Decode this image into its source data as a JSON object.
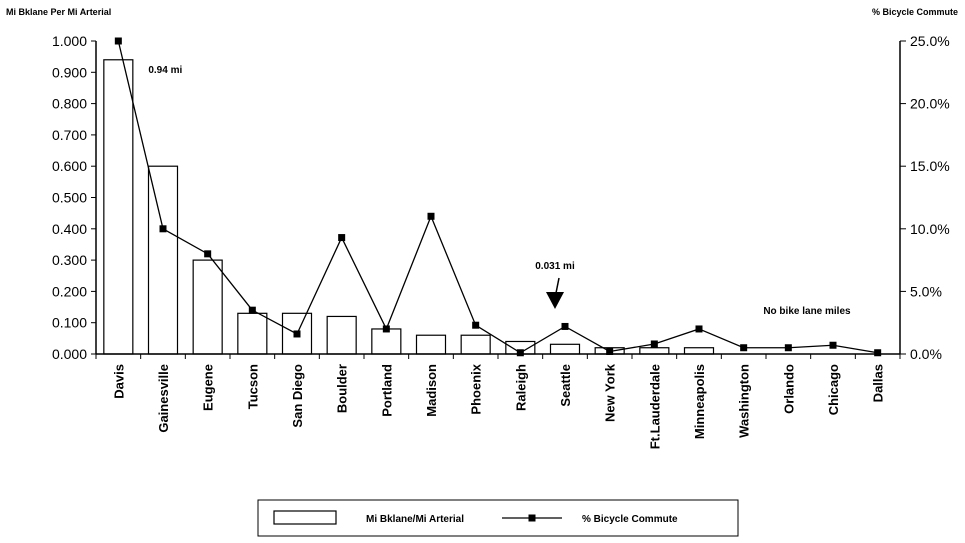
{
  "chart_data": {
    "type": "bar",
    "title": "",
    "left_axis_title": "Mi Bklane Per Mi Arterial",
    "right_axis_title": "% Bicycle Commute",
    "categories": [
      "Davis",
      "Gainesville",
      "Eugene",
      "Tucson",
      "San Diego",
      "Boulder",
      "Portland",
      "Madison",
      "Phoenix",
      "Raleigh",
      "Seattle",
      "New York",
      "Ft.Lauderdale",
      "Minneapolis",
      "Washington",
      "Orlando",
      "Chicago",
      "Dallas"
    ],
    "left_ylim": [
      0,
      1.0
    ],
    "left_ticks": [
      "0.000",
      "0.100",
      "0.200",
      "0.300",
      "0.400",
      "0.500",
      "0.600",
      "0.700",
      "0.800",
      "0.900",
      "1.000"
    ],
    "right_ylim": [
      0,
      25
    ],
    "right_ticks": [
      "0.0%",
      "5.0%",
      "10.0%",
      "15.0%",
      "20.0%",
      "25.0%"
    ],
    "series": [
      {
        "name": "Mi Bklane/Mi Arterial",
        "kind": "bar",
        "axis": "left",
        "values": [
          0.94,
          0.6,
          0.3,
          0.13,
          0.13,
          0.12,
          0.08,
          0.06,
          0.06,
          0.04,
          0.031,
          0.02,
          0.02,
          0.02,
          0,
          0,
          0,
          0
        ]
      },
      {
        "name": "% Bicycle Commute",
        "kind": "line",
        "axis": "right",
        "values": [
          25.0,
          10.0,
          8.0,
          3.5,
          1.6,
          9.3,
          2.0,
          11.0,
          2.3,
          0.1,
          2.2,
          0.2,
          0.8,
          2.0,
          0.5,
          0.5,
          0.7,
          0.1
        ]
      }
    ],
    "annotations": [
      {
        "text": "0.94 mi",
        "category": "Davis"
      },
      {
        "text": "0.031 mi",
        "category": "Seattle",
        "arrow": true
      },
      {
        "text": "No bike lane miles",
        "category": "Orlando"
      }
    ],
    "legend": {
      "position": "bottom",
      "bar_label": "Mi Bklane/Mi Arterial",
      "line_label": "% Bicycle Commute"
    },
    "grid": false
  }
}
